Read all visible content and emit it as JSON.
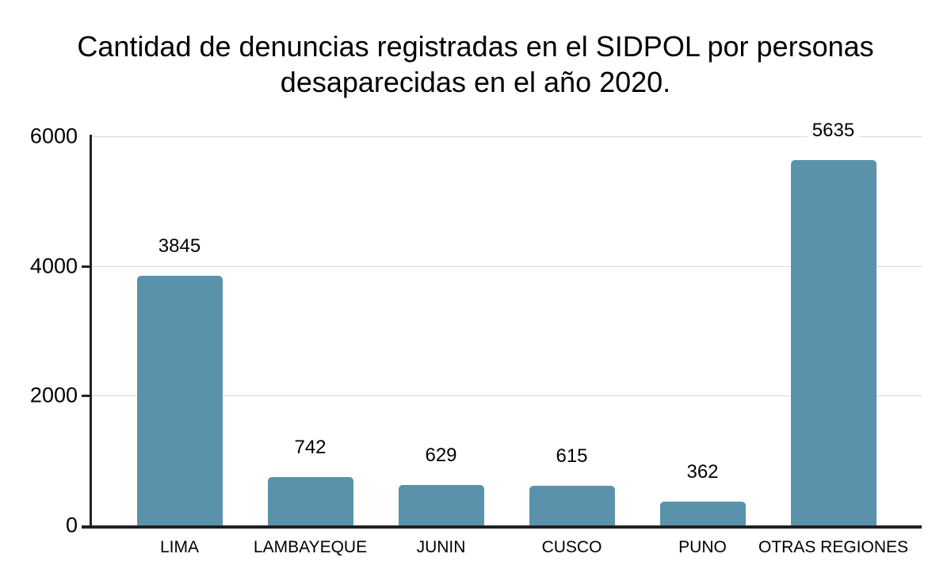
{
  "chart_data": {
    "type": "bar",
    "title": "Cantidad de denuncias registradas en el SIDPOL por personas desaparecidas en el año 2020.",
    "title_lines": [
      "Cantidad de denuncias registradas en el SIDPOL por personas",
      "desaparecidas en el año 2020."
    ],
    "categories": [
      "LIMA",
      "LAMBAYEQUE",
      "JUNIN",
      "CUSCO",
      "PUNO",
      "OTRAS REGIONES"
    ],
    "values": [
      3845,
      742,
      629,
      615,
      362,
      5635
    ],
    "value_labels": [
      "3845",
      "742",
      "629",
      "615",
      "362",
      "5635"
    ],
    "xlabel": "",
    "ylabel": "",
    "ylim": [
      0,
      6000
    ],
    "yticks": [
      0,
      2000,
      4000,
      6000
    ],
    "ytick_labels": [
      "0",
      "2000",
      "4000",
      "6000"
    ],
    "grid": true,
    "legend": "none",
    "colors": {
      "bar": "#5B92AB",
      "gridline": "#D9D9D9",
      "axis": "#212121",
      "text": "#000000",
      "background": "#FFFFFF"
    }
  }
}
